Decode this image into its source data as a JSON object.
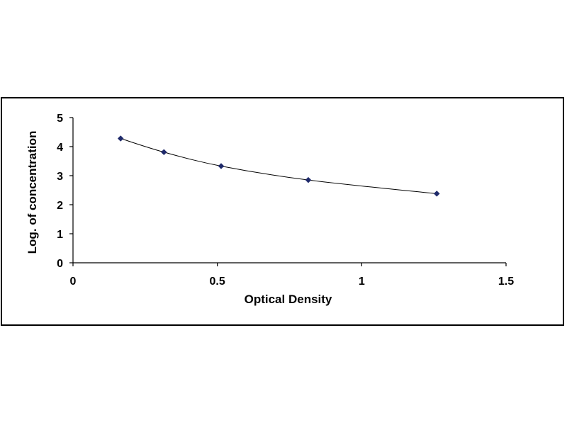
{
  "chart_data": {
    "type": "scatter",
    "title": "",
    "xlabel": "Optical Density",
    "ylabel": "Log. of concentration",
    "xlim": [
      0,
      1.5
    ],
    "ylim": [
      0,
      5
    ],
    "x_ticks": [
      "0",
      "0.5",
      "1",
      "1.5"
    ],
    "y_ticks": [
      "0",
      "1",
      "2",
      "3",
      "4",
      "5"
    ],
    "grid": false,
    "legend": "none",
    "series": [
      {
        "x": [
          0.165,
          0.315,
          0.513,
          0.815,
          1.26
        ],
        "y": [
          4.28,
          3.81,
          3.33,
          2.85,
          2.38
        ]
      }
    ],
    "trendline": "smooth curve through points",
    "marker_color": "#1f2a6b",
    "line_color": "#000000"
  }
}
